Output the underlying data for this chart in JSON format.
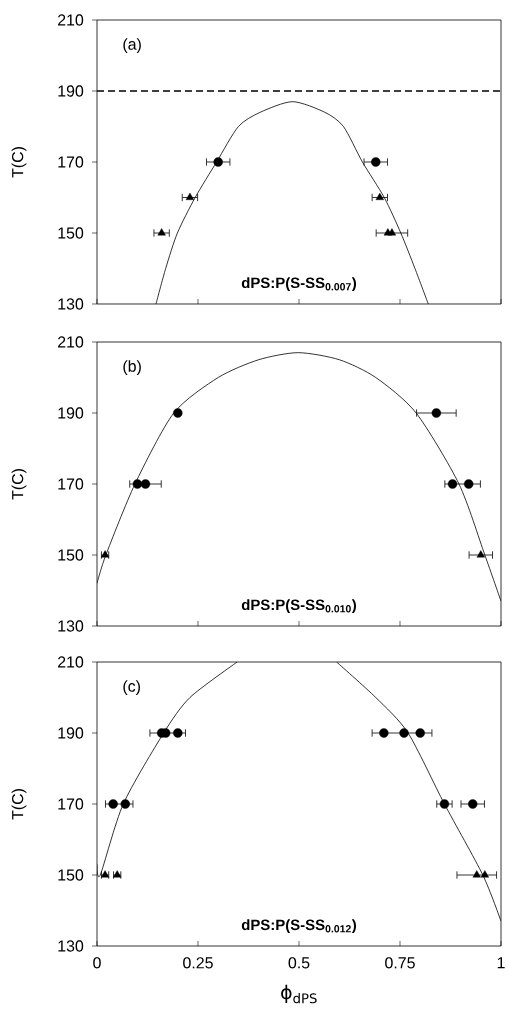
{
  "chart_data": [
    {
      "type": "scatter",
      "ylabel": "T(C)",
      "xlim": [
        0,
        1
      ],
      "ylim": [
        130,
        210
      ],
      "xticks": [
        0,
        0.25,
        0.5,
        0.75,
        1
      ],
      "yticks": [
        130,
        150,
        170,
        190,
        210
      ],
      "tick_labels": "y",
      "grid": false,
      "annotations": [
        "(a)",
        "dPS:P(S-SS$_{0.007}$)"
      ],
      "ref_lines": [
        {
          "axis": "y",
          "value": 190,
          "line_style": "dashed",
          "color": "#000000"
        }
      ],
      "series": [
        {
          "marker": "circle",
          "color": "#000000",
          "x": [
            0.3,
            0.69
          ],
          "values": [
            170,
            170
          ],
          "xerrors": [
            0.03,
            0.03
          ]
        },
        {
          "marker": "triangle",
          "color": "#000000",
          "x": [
            0.23,
            0.7,
            0.16,
            0.72,
            0.73
          ],
          "values": [
            160,
            160,
            150,
            150,
            150
          ],
          "xerrors": [
            0.02,
            0.02,
            0.02,
            null,
            [
              0.69,
              0.77
            ]
          ]
        },
        {
          "type": "line",
          "marker": "none",
          "color": "#000000",
          "x": [
            0.146,
            0.17,
            0.199,
            0.243,
            0.296,
            0.35,
            0.404,
            0.484,
            0.564,
            0.61,
            0.657,
            0.711,
            0.752,
            0.787,
            0.82
          ],
          "values": [
            130,
            140,
            150,
            160,
            170,
            180,
            184,
            187,
            184,
            180,
            170,
            160,
            150,
            140,
            130
          ]
        }
      ]
    },
    {
      "type": "scatter",
      "ylabel": "T(C)",
      "xlim": [
        0,
        1
      ],
      "ylim": [
        130,
        210
      ],
      "xticks": [
        0,
        0.25,
        0.5,
        0.75,
        1
      ],
      "yticks": [
        130,
        150,
        170,
        190,
        210
      ],
      "tick_labels": "y",
      "grid": false,
      "annotations": [
        "(b)",
        "dPS:P(S-SS$_{0.010}$)"
      ],
      "series": [
        {
          "marker": "circle",
          "color": "#000000",
          "x": [
            0.2,
            0.84,
            0.1,
            0.12,
            0.88,
            0.92
          ],
          "values": [
            190,
            190,
            170,
            170,
            170,
            170
          ],
          "xerrors": [
            null,
            0.05,
            null,
            0.04,
            null,
            [
              0.86,
              0.95
            ]
          ]
        },
        {
          "marker": "triangle",
          "color": "#000000",
          "x": [
            0.02,
            0.95
          ],
          "values": [
            150,
            150
          ],
          "xerrors": [
            0.01,
            0.03
          ]
        },
        {
          "type": "line",
          "marker": "none",
          "color": "#000000",
          "x": [
            0,
            0.022,
            0.094,
            0.19,
            0.3,
            0.4,
            0.498,
            0.6,
            0.69,
            0.79,
            0.896,
            0.96,
            1
          ],
          "values": [
            142,
            150,
            170,
            190,
            200,
            205,
            207,
            205,
            200,
            190,
            170,
            150,
            137
          ]
        }
      ]
    },
    {
      "type": "scatter",
      "ylabel": "T(C)",
      "xlabel": "ϕ$_{dPS}$",
      "xlim": [
        0,
        1
      ],
      "ylim": [
        130,
        210
      ],
      "xticks": [
        0,
        0.25,
        0.5,
        0.75,
        1
      ],
      "yticks": [
        130,
        150,
        170,
        190,
        210
      ],
      "grid": false,
      "annotations": [
        "(c)",
        "dPS:P(S-SS$_{0.012}$)"
      ],
      "series": [
        {
          "marker": "circle",
          "color": "#000000",
          "x": [
            0.16,
            0.17,
            0.2,
            0.71,
            0.76,
            0.8,
            0.04,
            0.07,
            0.86,
            0.93
          ],
          "values": [
            190,
            190,
            190,
            190,
            190,
            190,
            170,
            170,
            170,
            170
          ],
          "xerrors": [
            null,
            null,
            [
              0.13,
              0.22
            ],
            null,
            null,
            [
              0.68,
              0.83
            ],
            null,
            [
              0.02,
              0.09
            ],
            0.02,
            0.03
          ]
        },
        {
          "marker": "triangle",
          "color": "#000000",
          "x": [
            0.02,
            0.05,
            0.94,
            0.96
          ],
          "values": [
            150,
            150,
            150,
            150
          ],
          "xerrors": [
            0.01,
            0.01,
            null,
            [
              0.89,
              0.99
            ]
          ]
        },
        {
          "type": "line",
          "marker": "none",
          "color": "#000000",
          "x": [
            0,
            0.008,
            0.065,
            0.165,
            0.23,
            0.347,
            null,
            0.593,
            0.69,
            0.77,
            0.86,
            0.955,
            1
          ],
          "values": [
            153,
            150,
            170,
            190,
            200,
            210,
            null,
            210,
            200,
            190,
            170,
            150,
            137
          ]
        }
      ]
    }
  ]
}
